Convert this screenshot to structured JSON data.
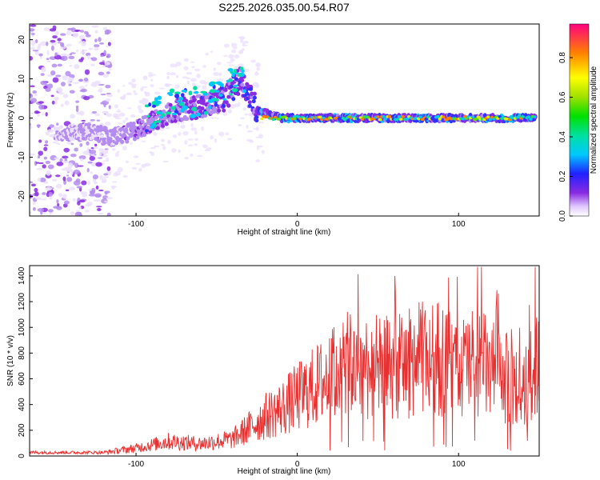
{
  "title": "S225.2026.035.00.54.R07",
  "chart_data": [
    {
      "type": "heatmap",
      "xlabel": "Height of straight line (km)",
      "ylabel": "Frequency (Hz)",
      "xlim": [
        -166,
        150
      ],
      "ylim": [
        -25,
        24
      ],
      "xticks": [
        -100,
        0,
        100
      ],
      "yticks": [
        -20,
        -10,
        0,
        10,
        20
      ],
      "colorbar": {
        "label": "Normalized spectral amplitude",
        "range": [
          0,
          0.97
        ],
        "ticks": [
          0.0,
          0.2,
          0.4,
          0.6,
          0.8
        ]
      },
      "ridge_points": [
        {
          "x": -150,
          "y": -4
        },
        {
          "x": -130,
          "y": -3.5
        },
        {
          "x": -115,
          "y": -5
        },
        {
          "x": -105,
          "y": -4
        },
        {
          "x": -90,
          "y": -1
        },
        {
          "x": -75,
          "y": 2
        },
        {
          "x": -60,
          "y": 3
        },
        {
          "x": -45,
          "y": 5
        },
        {
          "x": -35,
          "y": 10
        },
        {
          "x": -25,
          "y": 2
        },
        {
          "x": -10,
          "y": 0
        },
        {
          "x": 0,
          "y": 0
        },
        {
          "x": 25,
          "y": 0
        },
        {
          "x": 50,
          "y": 0
        },
        {
          "x": 75,
          "y": 0
        },
        {
          "x": 100,
          "y": 0
        },
        {
          "x": 125,
          "y": 0
        },
        {
          "x": 148,
          "y": 0
        }
      ]
    },
    {
      "type": "line",
      "xlabel": "Height of straight line (km)",
      "ylabel": "SNR (10 * v/v)",
      "xlim": [
        -166,
        150
      ],
      "ylim": [
        0,
        1480
      ],
      "xticks": [
        -100,
        0,
        100
      ],
      "yticks": [
        0,
        200,
        400,
        600,
        800,
        1000,
        1200,
        1400
      ],
      "color": "#e83030",
      "envelope": {
        "x": [
          -166,
          -140,
          -120,
          -100,
          -80,
          -60,
          -40,
          -30,
          -20,
          -10,
          0,
          20,
          30,
          40,
          60,
          80,
          90,
          100,
          110,
          120,
          130,
          140,
          150
        ],
        "y": [
          25,
          25,
          30,
          70,
          130,
          110,
          150,
          250,
          350,
          420,
          520,
          700,
          800,
          800,
          780,
          880,
          860,
          760,
          860,
          760,
          680,
          560,
          900
        ]
      }
    }
  ]
}
